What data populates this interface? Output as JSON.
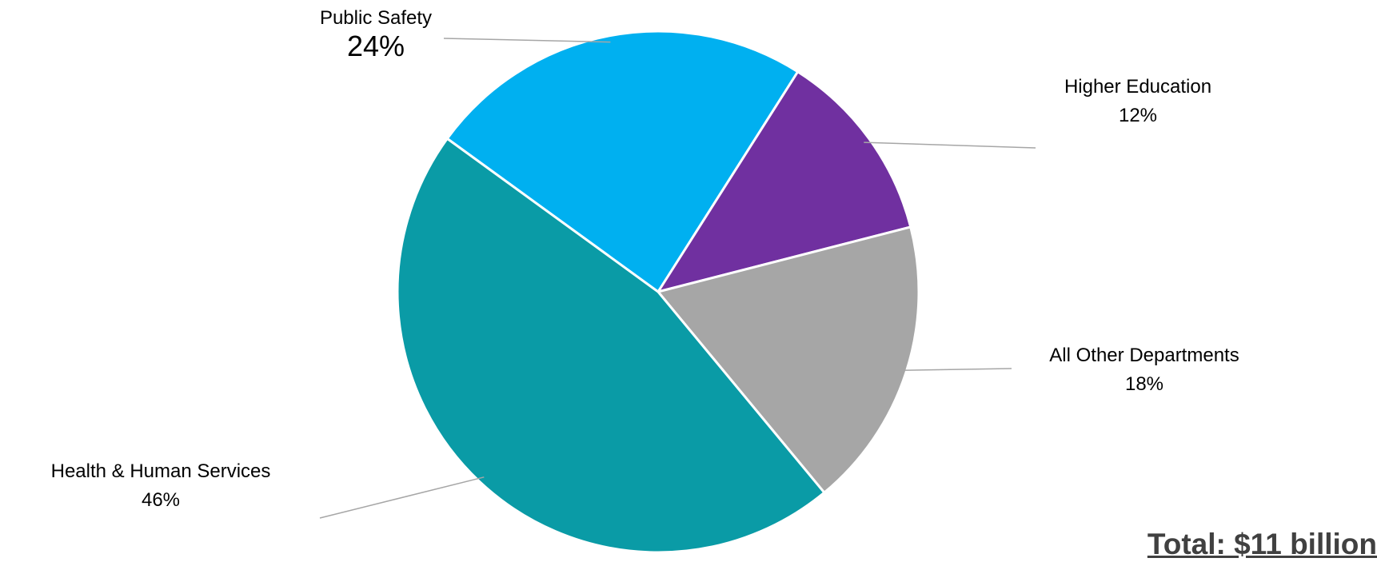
{
  "chart_data": {
    "type": "pie",
    "categories": [
      "Public Safety",
      "Higher Education",
      "All Other Departments",
      "Health & Human Services"
    ],
    "values": [
      24,
      12,
      18,
      46
    ],
    "value_labels": [
      "24%",
      "12%",
      "18%",
      "46%"
    ],
    "colors": [
      "#00B0F0",
      "#7030A0",
      "#A6A6A6",
      "#0A9BA6"
    ],
    "title": ""
  },
  "total_label": "Total: $11 billion"
}
